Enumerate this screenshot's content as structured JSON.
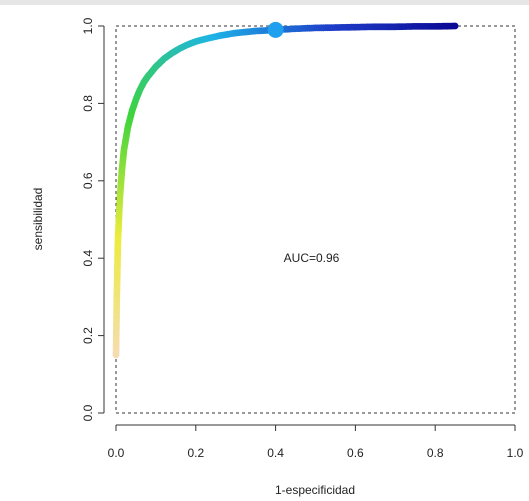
{
  "chart_data": {
    "type": "scatter",
    "title": "",
    "xlabel": "1-especificidad",
    "ylabel": "sensibilidad",
    "xlim": [
      0,
      1
    ],
    "ylim": [
      0,
      1
    ],
    "xticks": [
      "0.0",
      "0.2",
      "0.4",
      "0.6",
      "0.8",
      "1.0"
    ],
    "yticks": [
      "0.0",
      "0.2",
      "0.4",
      "0.6",
      "0.8",
      "1.0"
    ],
    "grid": false,
    "legend": "none",
    "box": "dashed",
    "annotation": {
      "text": "AUC=0.96",
      "x": 0.49,
      "y": 0.4
    },
    "highlight_point": {
      "x": 0.4,
      "y": 0.99,
      "color": "#1ea0ee"
    },
    "series": [
      {
        "x": [
          0.0,
          0.002,
          0.005,
          0.01,
          0.015,
          0.02,
          0.03,
          0.04,
          0.05,
          0.06,
          0.07,
          0.08,
          0.1,
          0.12,
          0.14,
          0.16,
          0.18,
          0.2,
          0.23,
          0.26,
          0.3,
          0.35,
          0.4,
          0.45,
          0.5,
          0.55,
          0.6,
          0.65,
          0.7,
          0.75,
          0.8,
          0.85
        ],
        "y": [
          0.15,
          0.3,
          0.45,
          0.56,
          0.63,
          0.68,
          0.74,
          0.78,
          0.81,
          0.835,
          0.855,
          0.87,
          0.895,
          0.915,
          0.93,
          0.942,
          0.952,
          0.96,
          0.968,
          0.975,
          0.982,
          0.987,
          0.99,
          0.993,
          0.995,
          0.996,
          0.997,
          0.998,
          0.998,
          0.999,
          0.999,
          1.0
        ]
      }
    ],
    "colors": {
      "gradient": [
        "#f5dcb2",
        "#ecec3c",
        "#3ed43c",
        "#1eb4e6",
        "#1e3cc8",
        "#0a0a96"
      ]
    }
  }
}
